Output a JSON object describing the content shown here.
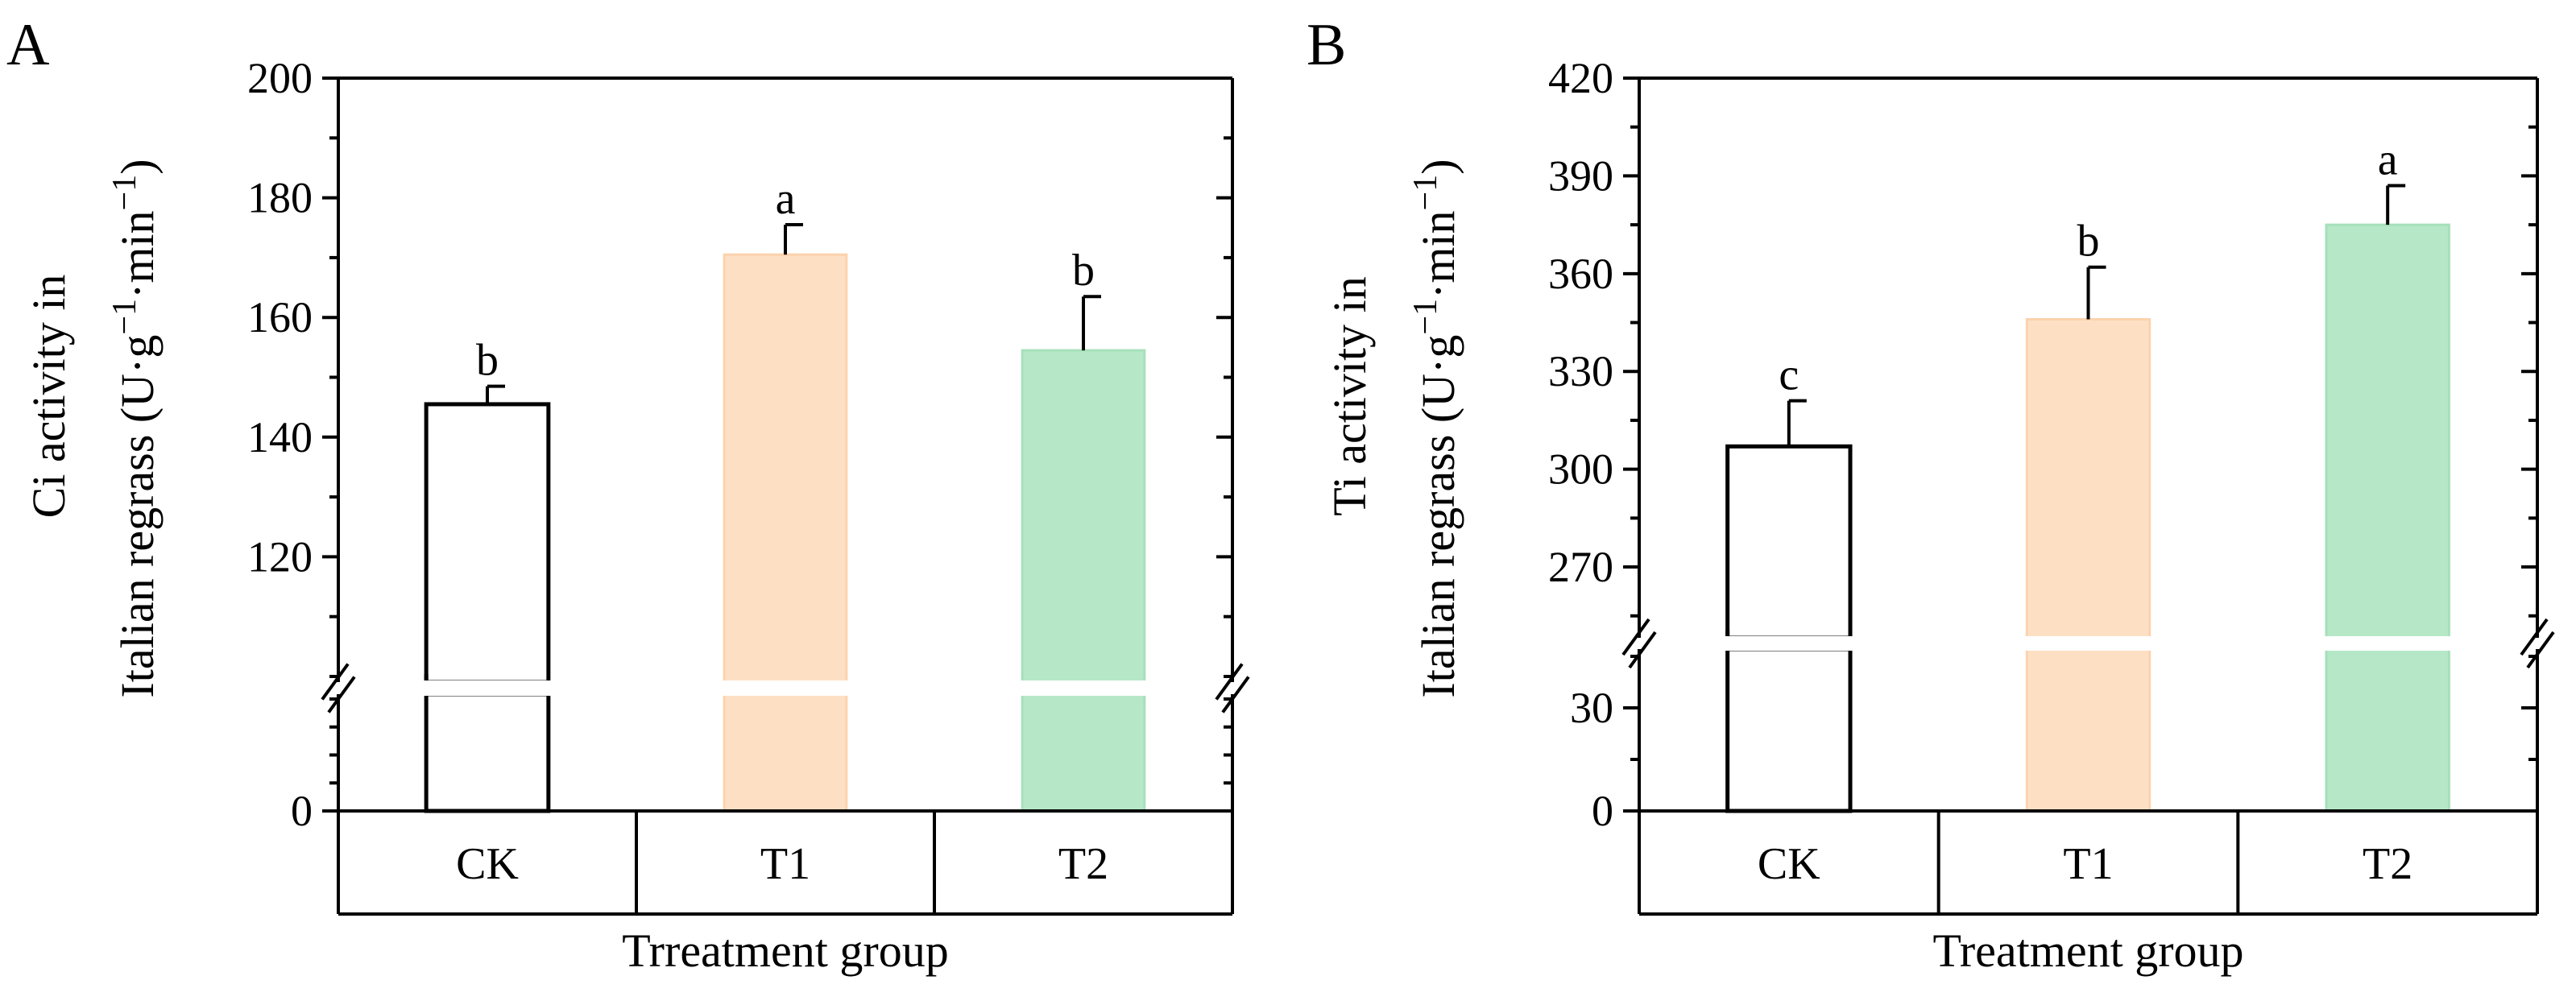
{
  "chart_data": [
    {
      "type": "bar",
      "panel_label": "A",
      "categories": [
        "CK",
        "T1",
        "T2"
      ],
      "values": [
        145.5,
        170.5,
        154.5
      ],
      "errors": [
        3,
        5,
        9
      ],
      "significance": [
        "b",
        "a",
        "b"
      ],
      "colors": [
        "#ffffff",
        "#fde0c4",
        "#b6e8c8"
      ],
      "edge_colors": [
        "#000000",
        "#fbd3ae",
        "#a7e0bb"
      ],
      "ylabel_line1": "Ci activity in",
      "ylabel_line2": "Italian regrass (U·g",
      "ylabel_sup1": "−1",
      "ylabel_mid": "·min",
      "ylabel_sup2": "−1",
      "ylabel_close": ")",
      "xlabel": "Trreatment group",
      "axis_break": true,
      "upper_range": [
        100,
        200
      ],
      "upper_ticks": [
        120,
        140,
        160,
        180,
        200
      ],
      "lower_range": [
        0,
        60
      ],
      "lower_ticks": [
        0
      ]
    },
    {
      "type": "bar",
      "panel_label": "B",
      "categories": [
        "CK",
        "T1",
        "T2"
      ],
      "values": [
        307,
        346,
        375
      ],
      "errors": [
        14,
        16,
        12
      ],
      "significance": [
        "c",
        "b",
        "a"
      ],
      "colors": [
        "#ffffff",
        "#fde0c4",
        "#b6e8c8"
      ],
      "edge_colors": [
        "#000000",
        "#fbd3ae",
        "#a7e0bb"
      ],
      "ylabel_line1": "Ti activity in",
      "ylabel_line2": "Italian regrass (U·g",
      "ylabel_sup1": "−1",
      "ylabel_mid": "·min",
      "ylabel_sup2": "−1",
      "ylabel_close": ")",
      "xlabel": "Treatment group",
      "axis_break": true,
      "upper_range": [
        250,
        420
      ],
      "upper_ticks": [
        270,
        300,
        330,
        360,
        390,
        420
      ],
      "lower_range": [
        0,
        45
      ],
      "lower_ticks": [
        0,
        30
      ]
    }
  ]
}
